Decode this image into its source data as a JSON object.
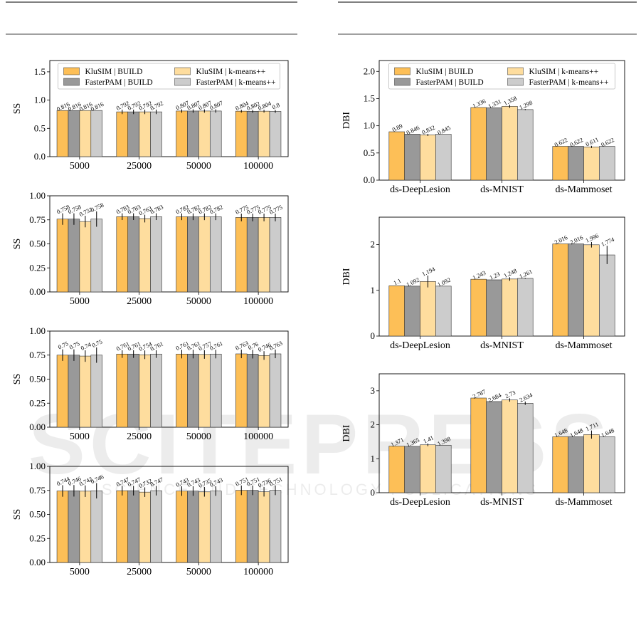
{
  "colors": {
    "s0": "#FDBF57",
    "s1": "#999999",
    "s2": "#FEDD9E",
    "s3": "#CCCCCC",
    "edge": "#000000"
  },
  "watermark": {
    "big": "SCITEPRESS",
    "sub": "SCIENCE AND TECHNOLOGY PUBLICATIONS"
  },
  "legend": {
    "items": [
      "KluSIM | BUILD",
      "FasterPAM | BUILD",
      "KluSIM | k-means++",
      "FasterPAM | k-means++"
    ]
  },
  "chart_data": [
    {
      "type": "bar",
      "ylabel": "SS",
      "ylim": [
        0,
        1.7
      ],
      "yticks": [
        "0.0",
        "0.5",
        "1.0",
        "1.5"
      ],
      "categories": [
        "5000",
        "25000",
        "50000",
        "100000"
      ],
      "legend": "top",
      "series": [
        {
          "name": "KluSIM | BUILD",
          "values": [
            0.816,
            0.792,
            0.807,
            0.804
          ],
          "labels": [
            "0.816",
            "0.792",
            "0.807",
            "0.804"
          ],
          "err": [
            0,
            0.04,
            0.03,
            0.025
          ]
        },
        {
          "name": "FasterPAM | BUILD",
          "values": [
            0.816,
            0.792,
            0.807,
            0.802
          ],
          "labels": [
            "0.816",
            "0.792",
            "0.807",
            "0.802"
          ],
          "err": [
            0,
            0.04,
            0.03,
            0.025
          ]
        },
        {
          "name": "KluSIM | k-means++",
          "values": [
            0.816,
            0.792,
            0.807,
            0.804
          ],
          "labels": [
            "0.816",
            "0.792",
            "0.807",
            "0.804"
          ],
          "err": [
            0,
            0.04,
            0.03,
            0.025
          ]
        },
        {
          "name": "FasterPAM | k-means++",
          "values": [
            0.816,
            0.792,
            0.807,
            0.8
          ],
          "labels": [
            "0.816",
            "0.792",
            "0.807",
            "0.8"
          ],
          "err": [
            0,
            0.04,
            0.03,
            0.025
          ]
        }
      ]
    },
    {
      "type": "bar",
      "ylabel": "SS",
      "ylim": [
        0,
        1.0
      ],
      "yticks": [
        "0.00",
        "0.25",
        "0.50",
        "0.75",
        "1.00"
      ],
      "categories": [
        "5000",
        "25000",
        "50000",
        "100000"
      ],
      "series": [
        {
          "values": [
            0.758,
            0.783,
            0.782,
            0.775
          ],
          "labels": [
            "0.758",
            "0.783",
            "0.782",
            "0.775"
          ],
          "err": [
            0.06,
            0.035,
            0.035,
            0.04
          ]
        },
        {
          "values": [
            0.758,
            0.783,
            0.782,
            0.775
          ],
          "labels": [
            "0.758",
            "0.783",
            "0.782",
            "0.775"
          ],
          "err": [
            0.06,
            0.035,
            0.035,
            0.04
          ]
        },
        {
          "values": [
            0.732,
            0.763,
            0.782,
            0.775
          ],
          "labels": [
            "0.732",
            "0.763",
            "0.782",
            "0.775"
          ],
          "err": [
            0.06,
            0.04,
            0.035,
            0.04
          ]
        },
        {
          "values": [
            0.758,
            0.783,
            0.782,
            0.775
          ],
          "labels": [
            "0.758",
            "0.783",
            "0.782",
            "0.775"
          ],
          "err": [
            0.08,
            0.035,
            0.035,
            0.04
          ]
        }
      ]
    },
    {
      "type": "bar",
      "ylabel": "SS",
      "ylim": [
        0,
        1.0
      ],
      "yticks": [
        "0.00",
        "0.25",
        "0.50",
        "0.75",
        "1.00"
      ],
      "categories": [
        "5000",
        "25000",
        "50000",
        "100000"
      ],
      "series": [
        {
          "values": [
            0.75,
            0.761,
            0.761,
            0.763
          ],
          "labels": [
            "0.75",
            "0.761",
            "0.761",
            "0.763"
          ],
          "err": [
            0.06,
            0.04,
            0.045,
            0.045
          ]
        },
        {
          "values": [
            0.75,
            0.761,
            0.761,
            0.76
          ],
          "labels": [
            "0.75",
            "0.761",
            "0.761",
            "0.76"
          ],
          "err": [
            0.06,
            0.04,
            0.045,
            0.045
          ]
        },
        {
          "values": [
            0.74,
            0.754,
            0.757,
            0.746
          ],
          "labels": [
            "0.74",
            "0.754",
            "0.757",
            "0.746"
          ],
          "err": [
            0.06,
            0.045,
            0.045,
            0.045
          ]
        },
        {
          "values": [
            0.75,
            0.761,
            0.761,
            0.763
          ],
          "labels": [
            "0.75",
            "0.761",
            "0.761",
            "0.763"
          ],
          "err": [
            0.08,
            0.04,
            0.045,
            0.045
          ]
        }
      ]
    },
    {
      "type": "bar",
      "ylabel": "SS",
      "ylim": [
        0,
        1.0
      ],
      "yticks": [
        "0.00",
        "0.25",
        "0.50",
        "0.75",
        "1.00"
      ],
      "categories": [
        "5000",
        "25000",
        "50000",
        "100000"
      ],
      "series": [
        {
          "values": [
            0.744,
            0.747,
            0.743,
            0.751
          ],
          "labels": [
            "0.744",
            "0.747",
            "0.743",
            "0.751"
          ],
          "err": [
            0.06,
            0.05,
            0.05,
            0.05
          ]
        },
        {
          "values": [
            0.746,
            0.747,
            0.743,
            0.751
          ],
          "labels": [
            "0.746",
            "0.747",
            "0.743",
            "0.751"
          ],
          "err": [
            0.06,
            0.05,
            0.05,
            0.05
          ]
        },
        {
          "values": [
            0.742,
            0.732,
            0.735,
            0.736
          ],
          "labels": [
            "0.742",
            "0.732",
            "0.735",
            "0.736"
          ],
          "err": [
            0.06,
            0.05,
            0.05,
            0.05
          ]
        },
        {
          "values": [
            0.746,
            0.747,
            0.743,
            0.751
          ],
          "labels": [
            "0.746",
            "0.747",
            "0.743",
            "0.751"
          ],
          "err": [
            0.08,
            0.05,
            0.05,
            0.05
          ]
        }
      ]
    },
    {
      "type": "bar",
      "ylabel": "DBI",
      "ylim": [
        0,
        2.2
      ],
      "yticks": [
        "0.0",
        "0.5",
        "1.0",
        "1.5",
        "2.0"
      ],
      "categories": [
        "ds-DeepLesion",
        "ds-MNIST",
        "ds-Mammoset"
      ],
      "legend": "top",
      "series": [
        {
          "name": "KluSIM | BUILD",
          "values": [
            0.89,
            1.336,
            0.622
          ],
          "labels": [
            "0.89",
            "1.336",
            "0.622"
          ],
          "err": [
            0,
            0,
            0
          ]
        },
        {
          "name": "FasterPAM | BUILD",
          "values": [
            0.846,
            1.331,
            0.622
          ],
          "labels": [
            "0.846",
            "1.331",
            "0.622"
          ],
          "err": [
            0,
            0,
            0
          ]
        },
        {
          "name": "KluSIM | k-means++",
          "values": [
            0.832,
            1.358,
            0.611
          ],
          "labels": [
            "0.832",
            "1.358",
            "0.611"
          ],
          "err": [
            0.02,
            0.03,
            0.02
          ]
        },
        {
          "name": "FasterPAM | k-means++",
          "values": [
            0.845,
            1.298,
            0.622
          ],
          "labels": [
            "0.845",
            "1.298",
            "0.622"
          ],
          "err": [
            0,
            0.01,
            0
          ]
        }
      ]
    },
    {
      "type": "bar",
      "ylabel": "DBI",
      "ylim": [
        0,
        2.6
      ],
      "yticks": [
        "0",
        "1",
        "2"
      ],
      "categories": [
        "ds-DeepLesion",
        "ds-MNIST",
        "ds-Mammoset"
      ],
      "series": [
        {
          "values": [
            1.1,
            1.243,
            2.016
          ],
          "labels": [
            "1.1",
            "1.243",
            "2.016"
          ],
          "err": [
            0,
            0,
            0
          ]
        },
        {
          "values": [
            1.092,
            1.23,
            2.016
          ],
          "labels": [
            "1.092",
            "1.23",
            "2.016"
          ],
          "err": [
            0,
            0,
            0
          ]
        },
        {
          "values": [
            1.194,
            1.248,
            1.996
          ],
          "labels": [
            "1.194",
            "1.248",
            "1.996"
          ],
          "err": [
            0.13,
            0.04,
            0.06
          ]
        },
        {
          "values": [
            1.092,
            1.261,
            1.774
          ],
          "labels": [
            "1.092",
            "1.261",
            "1.774"
          ],
          "err": [
            0,
            0.01,
            0.2
          ]
        }
      ]
    },
    {
      "type": "bar",
      "ylabel": "DBI",
      "ylim": [
        0,
        3.5
      ],
      "yticks": [
        "0",
        "1",
        "2",
        "3"
      ],
      "categories": [
        "ds-DeepLesion",
        "ds-MNIST",
        "ds-Mammoset"
      ],
      "series": [
        {
          "values": [
            1.371,
            2.787,
            1.648
          ],
          "labels": [
            "1.371",
            "2.787",
            "1.648"
          ],
          "err": [
            0,
            0,
            0
          ]
        },
        {
          "values": [
            1.365,
            2.684,
            1.648
          ],
          "labels": [
            "1.365",
            "2.684",
            "1.648"
          ],
          "err": [
            0,
            0,
            0
          ]
        },
        {
          "values": [
            1.41,
            2.73,
            1.711
          ],
          "labels": [
            "1.41",
            "2.73",
            "1.711"
          ],
          "err": [
            0.04,
            0.05,
            0.12
          ]
        },
        {
          "values": [
            1.398,
            2.634,
            1.648
          ],
          "labels": [
            "1.398",
            "2.634",
            "1.648"
          ],
          "err": [
            0,
            0.05,
            0
          ]
        }
      ]
    }
  ]
}
